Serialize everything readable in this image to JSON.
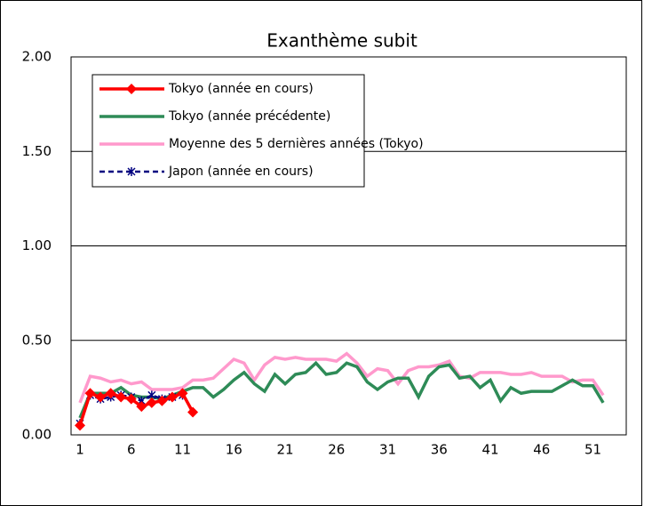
{
  "chart_data": {
    "type": "line",
    "title": "Exanthème subit",
    "categories": [
      1,
      null,
      null,
      null,
      null,
      6,
      null,
      null,
      null,
      null,
      11,
      null,
      null,
      null,
      null,
      16,
      null,
      null,
      null,
      null,
      21,
      null,
      null,
      null,
      null,
      26,
      null,
      null,
      null,
      null,
      31,
      null,
      null,
      null,
      null,
      36,
      null,
      null,
      null,
      null,
      41,
      null,
      null,
      null,
      null,
      46,
      null,
      null,
      null,
      null,
      51,
      null
    ],
    "series": [
      {
        "name": "Tokyo (année en cours)",
        "color": "#ff0000",
        "marker": "diamond",
        "values": [
          0.05,
          0.22,
          0.2,
          0.22,
          0.2,
          0.19,
          0.15,
          0.17,
          0.18,
          0.2,
          0.22,
          0.12,
          null,
          null,
          null,
          null,
          null,
          null,
          null,
          null,
          null,
          null,
          null,
          null,
          null,
          null,
          null,
          null,
          null,
          null,
          null,
          null,
          null,
          null,
          null,
          null,
          null,
          null,
          null,
          null,
          null,
          null,
          null,
          null,
          null,
          null,
          null,
          null,
          null,
          null,
          null,
          null
        ]
      },
      {
        "name": "Tokyo (année précédente)",
        "color": "#2e8b57",
        "marker": "none",
        "values": [
          0.09,
          0.22,
          0.22,
          0.22,
          0.25,
          0.21,
          0.2,
          0.2,
          0.19,
          0.21,
          0.23,
          0.25,
          0.25,
          0.2,
          0.24,
          0.29,
          0.33,
          0.27,
          0.23,
          0.32,
          0.27,
          0.32,
          0.33,
          0.38,
          0.32,
          0.33,
          0.38,
          0.36,
          0.28,
          0.24,
          0.28,
          0.3,
          0.3,
          0.2,
          0.31,
          0.36,
          0.37,
          0.3,
          0.31,
          0.25,
          0.29,
          0.18,
          0.25,
          0.22,
          0.23,
          0.23,
          0.23,
          0.26,
          0.29,
          0.26,
          0.26,
          0.17
        ]
      },
      {
        "name": "Moyenne des 5 dernières années (Tokyo)",
        "color": "#ff99cc",
        "marker": "none",
        "values": [
          0.17,
          0.31,
          0.3,
          0.28,
          0.29,
          0.27,
          0.28,
          0.24,
          0.24,
          0.24,
          0.25,
          0.29,
          0.29,
          0.3,
          0.35,
          0.4,
          0.38,
          0.29,
          0.37,
          0.41,
          0.4,
          0.41,
          0.4,
          0.4,
          0.4,
          0.39,
          0.43,
          0.38,
          0.31,
          0.35,
          0.34,
          0.27,
          0.34,
          0.36,
          0.36,
          0.37,
          0.39,
          0.31,
          0.3,
          0.33,
          0.33,
          0.33,
          0.32,
          0.32,
          0.33,
          0.31,
          0.31,
          0.31,
          0.28,
          0.29,
          0.29,
          0.21
        ]
      },
      {
        "name": "Japon (année en cours)",
        "color": "#000080",
        "marker": "star",
        "dashed": true,
        "values": [
          0.06,
          0.21,
          0.19,
          0.2,
          0.21,
          0.2,
          0.18,
          0.21,
          0.19,
          0.2,
          0.21,
          null,
          null,
          null,
          null,
          null,
          null,
          null,
          null,
          null,
          null,
          null,
          null,
          null,
          null,
          null,
          null,
          null,
          null,
          null,
          null,
          null,
          null,
          null,
          null,
          null,
          null,
          null,
          null,
          null,
          null,
          null,
          null,
          null,
          null,
          null,
          null,
          null,
          null,
          null,
          null,
          null
        ]
      }
    ],
    "ylim": [
      0,
      2
    ],
    "yticks": [
      {
        "value": 0,
        "label": "0.00"
      },
      {
        "value": 0.5,
        "label": "0.50"
      },
      {
        "value": 1,
        "label": "1.00"
      },
      {
        "value": 1.5,
        "label": "1.50"
      },
      {
        "value": 2,
        "label": "2.00"
      }
    ],
    "grid": true,
    "legend": "top-left"
  }
}
